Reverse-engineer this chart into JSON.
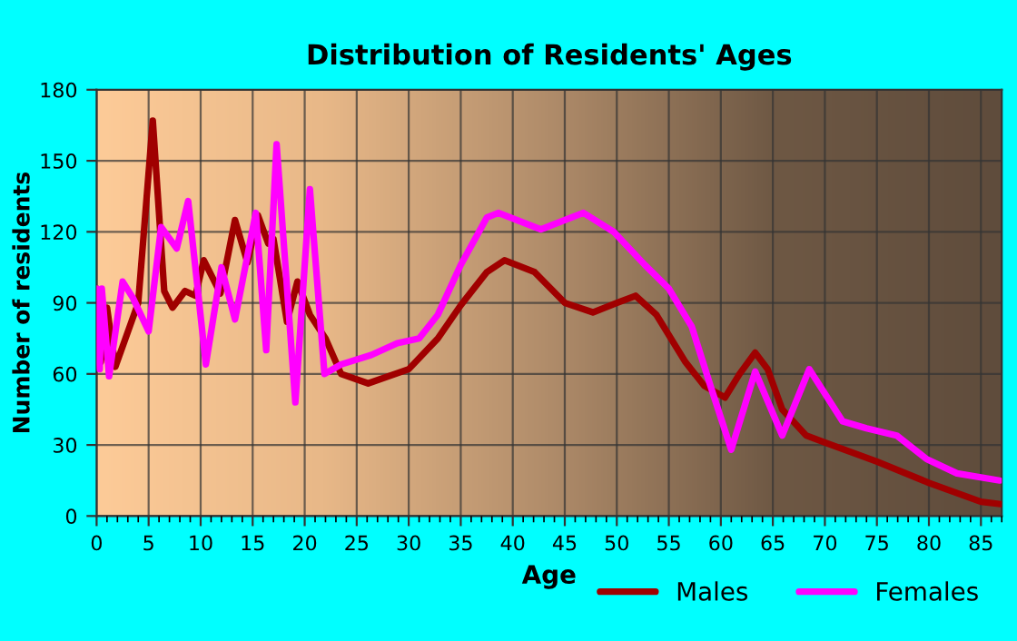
{
  "chart_data": {
    "type": "line",
    "title": "Distribution of Residents' Ages",
    "xlabel": "Age",
    "ylabel": "Number of residents",
    "xlim": [
      0,
      87
    ],
    "xticks": [
      0,
      5,
      10,
      15,
      20,
      25,
      30,
      35,
      40,
      45,
      50,
      55,
      60,
      65,
      70,
      75,
      80,
      85
    ],
    "ylim": [
      0,
      180
    ],
    "yticks": [
      0,
      30,
      60,
      90,
      120,
      150,
      180
    ],
    "grid": true,
    "legend": "bottom right",
    "marker": "none",
    "line_style": "solid",
    "series": [
      {
        "name": "Males",
        "color": "#a00000",
        "x": [
          0,
          0.4,
          1,
          1.8,
          4,
          5.4,
          6.5,
          7.3,
          8.5,
          9.5,
          10.3,
          11.9,
          13.3,
          14.5,
          15.5,
          16.5,
          17,
          18.3,
          19.3,
          20.5,
          22,
          23.5,
          26.1,
          30,
          32.8,
          35,
          37.5,
          39.2,
          42.1,
          45,
          47.7,
          50,
          51.8,
          53.8,
          56.6,
          58.4,
          60.4,
          61.8,
          63.3,
          64.5,
          65.9,
          68.2,
          70,
          75,
          80,
          85,
          86.9
        ],
        "values": [
          96,
          65,
          88,
          63,
          90,
          167,
          95,
          88,
          95,
          93,
          108,
          94,
          125,
          107,
          127,
          115,
          117,
          82,
          99,
          85,
          75,
          60,
          56,
          62,
          75,
          89,
          103,
          108,
          103,
          90,
          86,
          90,
          93,
          85,
          65,
          55,
          50,
          60,
          69,
          62,
          45,
          34,
          31,
          23,
          14,
          6,
          5
        ]
      },
      {
        "name": "Females",
        "color": "#ff00ff",
        "x": [
          0,
          0.3,
          0.5,
          1.2,
          2.5,
          3.5,
          5,
          6.2,
          7.7,
          8.8,
          10.5,
          12,
          13.3,
          15.3,
          16.3,
          17.3,
          19.1,
          20.5,
          21.9,
          23.5,
          26.4,
          28.9,
          31,
          32.8,
          35,
          37.5,
          38.6,
          42.7,
          45,
          46.8,
          49.7,
          52.7,
          55,
          57.2,
          59,
          61,
          63.3,
          65.9,
          68.5,
          71.7,
          74,
          76.9,
          79.8,
          82.7,
          86.8
        ],
        "values": [
          96,
          62,
          96,
          59,
          99,
          92,
          78,
          122,
          113,
          133,
          64,
          105,
          83,
          128,
          70,
          157,
          48,
          138,
          60,
          64,
          68,
          73,
          75,
          85,
          106,
          126,
          128,
          121,
          125,
          128,
          120,
          106,
          96,
          80,
          55,
          28,
          61,
          34,
          62,
          40,
          37,
          34,
          24,
          18,
          15
        ]
      }
    ]
  }
}
